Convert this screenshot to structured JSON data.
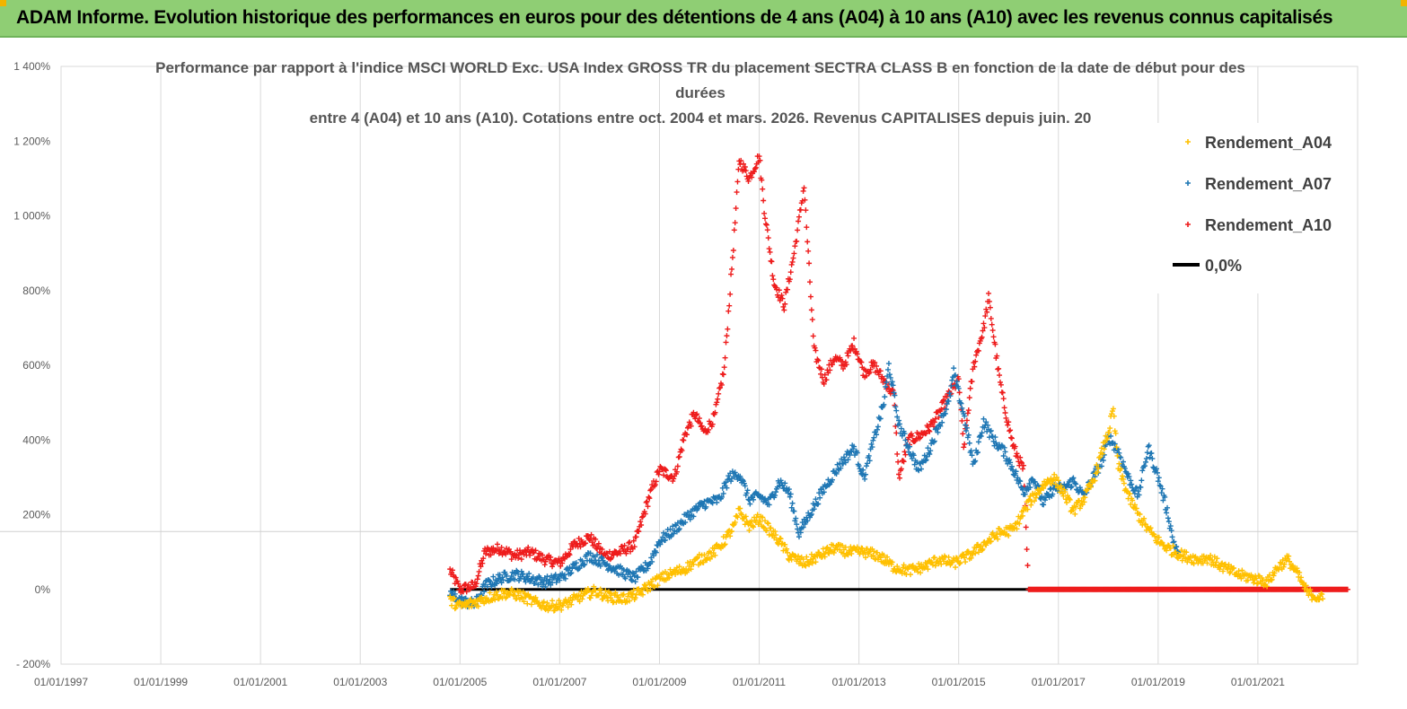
{
  "banner": {
    "text": "ADAM Informe. Evolution historique des performances en euros pour des détentions de 4 ans (A04) à 10 ans (A10) avec les revenus connus capitalisés",
    "color": "#8fce74"
  },
  "chart_data": {
    "type": "scatter",
    "title_lines": [
      "Performance par rapport à l'indice MSCI WORLD Exc. USA Index GROSS TR  du placement SECTRA CLASS B en fonction de la date de début pour des",
      "durées",
      "entre 4 (A04) et 10 ans (A10).  Cotations entre oct. 2004 et mars. 2026. Revenus CAPITALISES depuis juin. 20"
    ],
    "xlabel": "",
    "ylabel": "",
    "ylim": [
      -200,
      1400
    ],
    "xlim": [
      1997.0,
      2023.0
    ],
    "yticks": [
      -200,
      0,
      200,
      400,
      600,
      800,
      1000,
      1200,
      1400
    ],
    "ytick_labels": [
      "- 200%",
      "0%",
      "200%",
      "400%",
      "600%",
      "800%",
      "1 000%",
      "1 200%",
      "1 400%"
    ],
    "xticks": [
      1997,
      1999,
      2001,
      2003,
      2005,
      2007,
      2009,
      2011,
      2013,
      2015,
      2017,
      2019,
      2021
    ],
    "xtick_labels": [
      "01/01/1997",
      "01/01/1999",
      "01/01/2001",
      "01/01/2003",
      "01/01/2005",
      "01/01/2007",
      "01/01/2009",
      "01/01/2011",
      "01/01/2013",
      "01/01/2015",
      "01/01/2017",
      "01/01/2019",
      "01/01/2021"
    ],
    "grid": true,
    "legend_position": "right",
    "series": [
      {
        "name": "Rendement_A04",
        "color": "#ffc000",
        "marker": "plus",
        "points": [
          [
            2004.8,
            -30
          ],
          [
            2005.0,
            -45
          ],
          [
            2005.3,
            -35
          ],
          [
            2005.6,
            -20
          ],
          [
            2005.9,
            -10
          ],
          [
            2006.2,
            -15
          ],
          [
            2006.5,
            -35
          ],
          [
            2006.8,
            -45
          ],
          [
            2007.1,
            -40
          ],
          [
            2007.4,
            -20
          ],
          [
            2007.7,
            -5
          ],
          [
            2008.0,
            -20
          ],
          [
            2008.3,
            -25
          ],
          [
            2008.6,
            -10
          ],
          [
            2008.9,
            20
          ],
          [
            2009.2,
            40
          ],
          [
            2009.5,
            55
          ],
          [
            2009.8,
            80
          ],
          [
            2010.1,
            100
          ],
          [
            2010.3,
            130
          ],
          [
            2010.5,
            170
          ],
          [
            2010.6,
            210
          ],
          [
            2010.8,
            170
          ],
          [
            2011.0,
            190
          ],
          [
            2011.2,
            160
          ],
          [
            2011.4,
            130
          ],
          [
            2011.6,
            90
          ],
          [
            2011.9,
            70
          ],
          [
            2012.2,
            90
          ],
          [
            2012.5,
            110
          ],
          [
            2012.8,
            100
          ],
          [
            2013.1,
            100
          ],
          [
            2013.4,
            90
          ],
          [
            2013.7,
            60
          ],
          [
            2014.0,
            50
          ],
          [
            2014.3,
            60
          ],
          [
            2014.6,
            80
          ],
          [
            2014.9,
            70
          ],
          [
            2015.2,
            90
          ],
          [
            2015.5,
            120
          ],
          [
            2015.8,
            150
          ],
          [
            2016.1,
            160
          ],
          [
            2016.4,
            230
          ],
          [
            2016.7,
            280
          ],
          [
            2016.9,
            300
          ],
          [
            2017.1,
            260
          ],
          [
            2017.3,
            210
          ],
          [
            2017.5,
            240
          ],
          [
            2017.7,
            290
          ],
          [
            2017.9,
            380
          ],
          [
            2018.0,
            420
          ],
          [
            2018.1,
            480
          ],
          [
            2018.2,
            330
          ],
          [
            2018.4,
            250
          ],
          [
            2018.6,
            200
          ],
          [
            2018.8,
            160
          ],
          [
            2019.0,
            130
          ],
          [
            2019.2,
            110
          ],
          [
            2019.5,
            90
          ],
          [
            2019.8,
            80
          ],
          [
            2020.0,
            85
          ],
          [
            2020.3,
            60
          ],
          [
            2020.6,
            40
          ],
          [
            2020.9,
            30
          ],
          [
            2021.2,
            20
          ],
          [
            2021.4,
            60
          ],
          [
            2021.6,
            80
          ],
          [
            2021.8,
            40
          ],
          [
            2022.0,
            -10
          ],
          [
            2022.3,
            -25
          ]
        ]
      },
      {
        "name": "Rendement_A07",
        "color": "#1f77b4",
        "marker": "plus",
        "points": [
          [
            2004.8,
            -10
          ],
          [
            2005.0,
            -30
          ],
          [
            2005.3,
            -40
          ],
          [
            2005.5,
            10
          ],
          [
            2005.8,
            30
          ],
          [
            2006.1,
            40
          ],
          [
            2006.4,
            30
          ],
          [
            2006.7,
            20
          ],
          [
            2007.0,
            30
          ],
          [
            2007.3,
            60
          ],
          [
            2007.6,
            90
          ],
          [
            2007.9,
            70
          ],
          [
            2008.2,
            50
          ],
          [
            2008.5,
            30
          ],
          [
            2008.8,
            70
          ],
          [
            2009.0,
            130
          ],
          [
            2009.3,
            160
          ],
          [
            2009.6,
            200
          ],
          [
            2009.9,
            230
          ],
          [
            2010.2,
            240
          ],
          [
            2010.4,
            300
          ],
          [
            2010.6,
            310
          ],
          [
            2010.8,
            240
          ],
          [
            2011.0,
            250
          ],
          [
            2011.2,
            230
          ],
          [
            2011.4,
            290
          ],
          [
            2011.6,
            260
          ],
          [
            2011.8,
            150
          ],
          [
            2012.0,
            200
          ],
          [
            2012.3,
            270
          ],
          [
            2012.6,
            330
          ],
          [
            2012.9,
            380
          ],
          [
            2013.1,
            300
          ],
          [
            2013.3,
            400
          ],
          [
            2013.5,
            500
          ],
          [
            2013.6,
            600
          ],
          [
            2013.8,
            440
          ],
          [
            2014.0,
            380
          ],
          [
            2014.2,
            320
          ],
          [
            2014.4,
            370
          ],
          [
            2014.6,
            440
          ],
          [
            2014.8,
            500
          ],
          [
            2014.9,
            580
          ],
          [
            2015.1,
            470
          ],
          [
            2015.3,
            330
          ],
          [
            2015.5,
            450
          ],
          [
            2015.7,
            400
          ],
          [
            2015.9,
            370
          ],
          [
            2016.1,
            320
          ],
          [
            2016.3,
            260
          ],
          [
            2016.5,
            300
          ],
          [
            2016.7,
            230
          ],
          [
            2016.9,
            270
          ],
          [
            2017.1,
            270
          ],
          [
            2017.3,
            290
          ],
          [
            2017.5,
            250
          ],
          [
            2017.7,
            300
          ],
          [
            2017.9,
            350
          ],
          [
            2018.0,
            410
          ],
          [
            2018.2,
            370
          ],
          [
            2018.4,
            300
          ],
          [
            2018.6,
            250
          ],
          [
            2018.8,
            380
          ],
          [
            2019.0,
            300
          ],
          [
            2019.2,
            200
          ],
          [
            2019.3,
            130
          ],
          [
            2019.4,
            100
          ]
        ]
      },
      {
        "name": "Rendement_A10",
        "color": "#ee1c1c",
        "marker": "plus",
        "points": [
          [
            2004.8,
            50
          ],
          [
            2005.0,
            0
          ],
          [
            2005.3,
            10
          ],
          [
            2005.5,
            100
          ],
          [
            2005.8,
            110
          ],
          [
            2006.1,
            90
          ],
          [
            2006.4,
            100
          ],
          [
            2006.7,
            80
          ],
          [
            2007.0,
            70
          ],
          [
            2007.3,
            120
          ],
          [
            2007.6,
            140
          ],
          [
            2007.9,
            90
          ],
          [
            2008.2,
            100
          ],
          [
            2008.5,
            120
          ],
          [
            2008.8,
            250
          ],
          [
            2009.0,
            320
          ],
          [
            2009.3,
            300
          ],
          [
            2009.5,
            410
          ],
          [
            2009.7,
            470
          ],
          [
            2009.9,
            420
          ],
          [
            2010.1,
            460
          ],
          [
            2010.3,
            590
          ],
          [
            2010.5,
            950
          ],
          [
            2010.6,
            1150
          ],
          [
            2010.8,
            1100
          ],
          [
            2011.0,
            1160
          ],
          [
            2011.1,
            1020
          ],
          [
            2011.3,
            820
          ],
          [
            2011.5,
            760
          ],
          [
            2011.7,
            900
          ],
          [
            2011.9,
            1080
          ],
          [
            2012.1,
            640
          ],
          [
            2012.3,
            560
          ],
          [
            2012.5,
            620
          ],
          [
            2012.7,
            600
          ],
          [
            2012.9,
            660
          ],
          [
            2013.1,
            580
          ],
          [
            2013.3,
            600
          ],
          [
            2013.5,
            560
          ],
          [
            2013.7,
            520
          ],
          [
            2013.8,
            300
          ],
          [
            2014.0,
            400
          ],
          [
            2014.2,
            410
          ],
          [
            2014.4,
            430
          ],
          [
            2014.6,
            470
          ],
          [
            2014.8,
            520
          ],
          [
            2015.0,
            560
          ],
          [
            2015.1,
            380
          ],
          [
            2015.3,
            600
          ],
          [
            2015.5,
            700
          ],
          [
            2015.6,
            780
          ],
          [
            2015.8,
            580
          ],
          [
            2015.9,
            500
          ],
          [
            2016.1,
            380
          ],
          [
            2016.3,
            320
          ],
          [
            2016.4,
            0
          ],
          [
            2017.0,
            0
          ],
          [
            2018.0,
            0
          ],
          [
            2019.0,
            0
          ],
          [
            2020.0,
            0
          ],
          [
            2021.0,
            0
          ],
          [
            2022.0,
            0
          ],
          [
            2022.8,
            0
          ]
        ]
      },
      {
        "name": "0,0%",
        "color": "#000000",
        "marker": "line",
        "points": [
          [
            2004.8,
            0
          ],
          [
            2016.4,
            0
          ]
        ]
      }
    ]
  }
}
